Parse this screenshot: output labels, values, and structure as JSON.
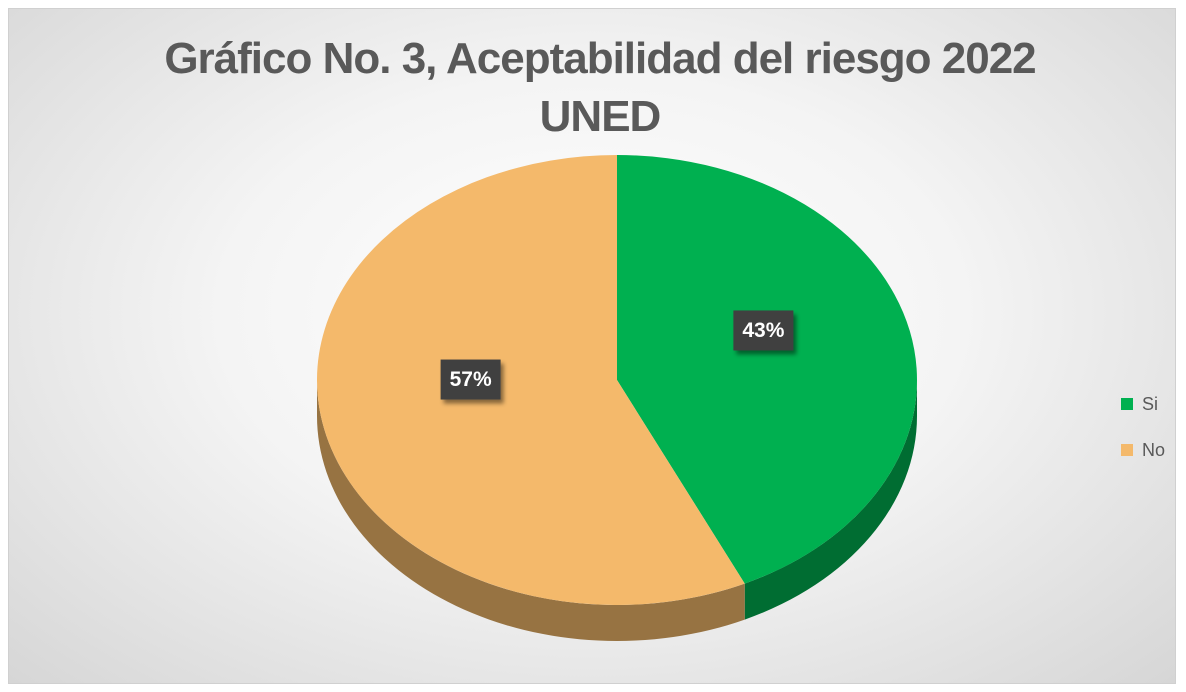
{
  "chart_data": {
    "type": "pie",
    "title": "Gráfico No. 3, Aceptabilidad del riesgo 2022 UNED",
    "categories": [
      "Si",
      "No"
    ],
    "values": [
      43,
      57
    ],
    "value_labels": [
      "43%",
      "57%"
    ],
    "colors": [
      "#00b050",
      "#f4b96b"
    ],
    "legend": "right"
  }
}
